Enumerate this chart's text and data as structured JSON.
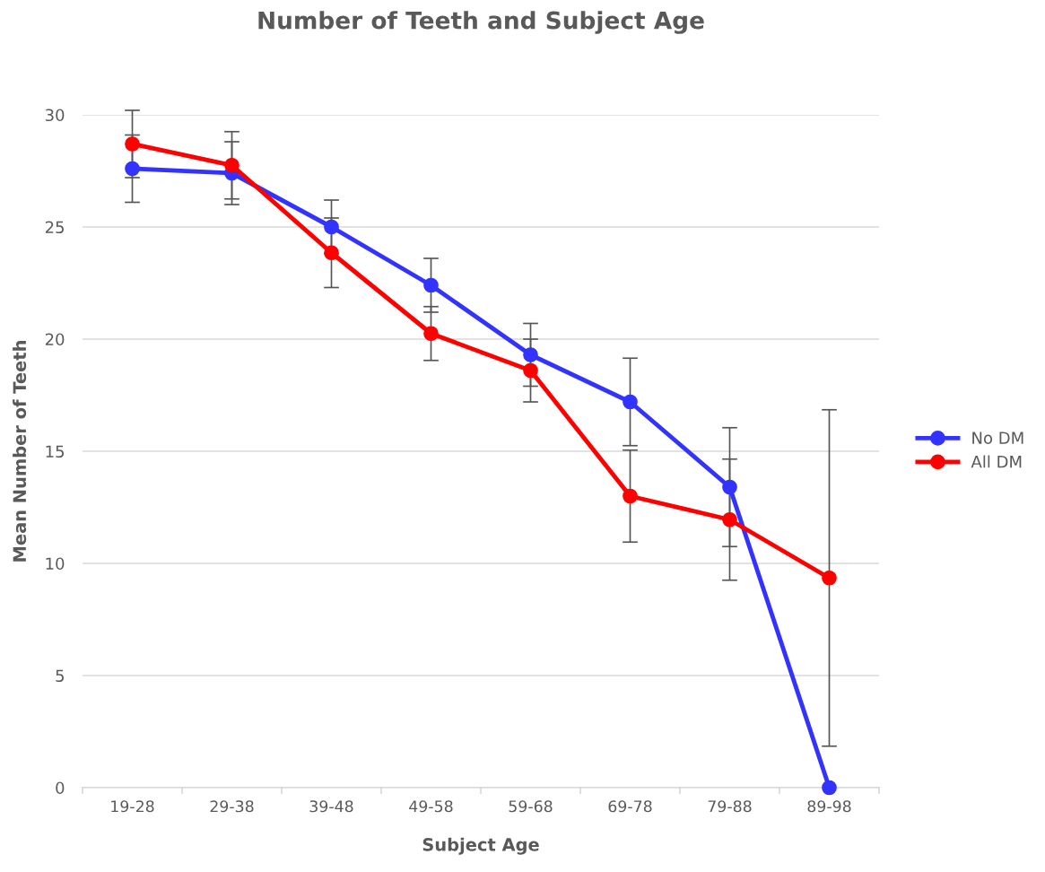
{
  "chart_data": {
    "type": "line",
    "title": "Number of Teeth and Subject Age",
    "xlabel": "Subject Age",
    "ylabel": "Mean Number of Teeth",
    "categories": [
      "19-28",
      "29-38",
      "39-48",
      "49-58",
      "59-68",
      "69-78",
      "79-88",
      "89-98"
    ],
    "series": [
      {
        "name": "No DM",
        "color": "#3333ff",
        "values": [
          27.6,
          27.4,
          25.0,
          22.4,
          19.3,
          17.2,
          13.4,
          0
        ],
        "errors": [
          1.5,
          1.4,
          1.2,
          1.2,
          1.4,
          1.95,
          2.65,
          null
        ]
      },
      {
        "name": "All DM",
        "color": "#ff0000",
        "values": [
          28.7,
          27.75,
          23.85,
          20.25,
          18.6,
          13.0,
          11.95,
          9.35
        ],
        "errors": [
          1.5,
          1.5,
          1.55,
          1.2,
          1.4,
          2.05,
          2.7,
          7.5
        ]
      }
    ],
    "ylim": [
      0,
      30
    ],
    "yticks": [
      0,
      5,
      10,
      15,
      20,
      25,
      30
    ],
    "grid": "y",
    "legend": "right",
    "marker": "circle",
    "line_style": "solid"
  }
}
